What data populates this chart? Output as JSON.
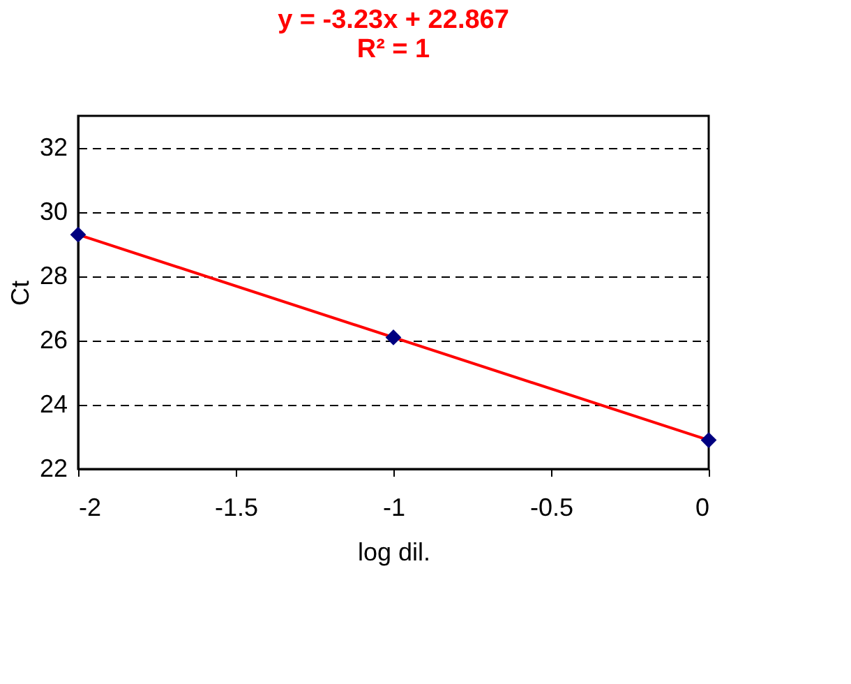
{
  "chart_data": {
    "type": "scatter",
    "xlabel": "log dil.",
    "ylabel": "Ct",
    "annotations": [
      "y = -3.23x + 22.867",
      "R² = 1"
    ],
    "series": [
      {
        "type": "scatter",
        "color": "#000080",
        "marker": "diamond",
        "x": [
          -2,
          -1,
          0
        ],
        "values": [
          29.3,
          26.1,
          22.9
        ]
      },
      {
        "type": "line",
        "color": "#ff0000",
        "marker": "none",
        "line_style": "solid",
        "x": [
          -2,
          0
        ],
        "values": [
          29.3,
          22.9
        ]
      }
    ],
    "xlim": [
      -2,
      0
    ],
    "xticks": [
      -2,
      -1.5,
      -1,
      -0.5,
      0
    ],
    "ylim": [
      22,
      33
    ],
    "yticks": [
      22,
      24,
      26,
      28,
      30,
      32
    ],
    "grid": "y"
  }
}
